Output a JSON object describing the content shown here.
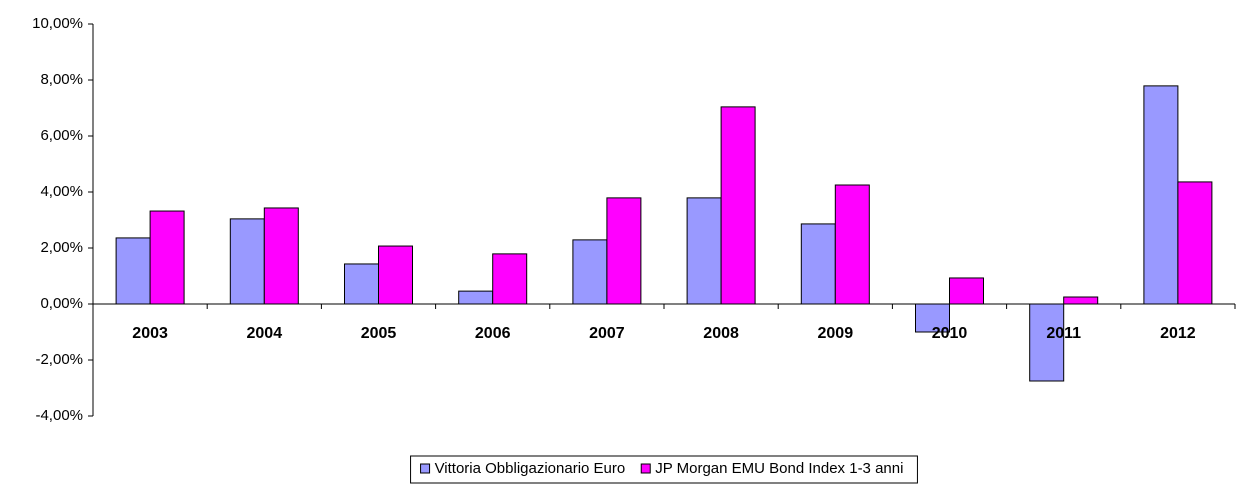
{
  "chart_data": {
    "type": "bar",
    "categories": [
      "2003",
      "2004",
      "2005",
      "2006",
      "2007",
      "2008",
      "2009",
      "2010",
      "2011",
      "2012"
    ],
    "series": [
      {
        "name": "Vittoria Obbligazionario Euro",
        "color": "#9999ff",
        "values": [
          2.36,
          3.04,
          1.43,
          0.46,
          2.29,
          3.79,
          2.86,
          -1.0,
          -2.75,
          7.79
        ]
      },
      {
        "name": "JP Morgan EMU Bond Index 1-3 anni",
        "color": "#ff00ff",
        "values": [
          3.32,
          3.43,
          2.07,
          1.79,
          3.79,
          7.04,
          4.25,
          0.93,
          0.25,
          4.36
        ]
      }
    ],
    "ylim": [
      -4,
      10
    ],
    "yticks": [
      {
        "value": -4,
        "label": "-4,00%"
      },
      {
        "value": -2,
        "label": "-2,00%"
      },
      {
        "value": 0,
        "label": "0,00%"
      },
      {
        "value": 2,
        "label": "2,00%"
      },
      {
        "value": 4,
        "label": "4,00%"
      },
      {
        "value": 6,
        "label": "6,00%"
      },
      {
        "value": 8,
        "label": "8,00%"
      },
      {
        "value": 10,
        "label": "10,00%"
      }
    ],
    "legend": "bottom"
  }
}
